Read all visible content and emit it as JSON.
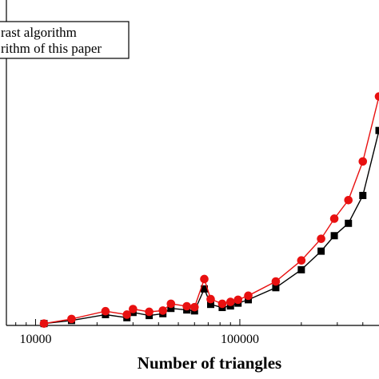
{
  "chart_data": {
    "type": "line",
    "xscale": "log",
    "xlabel": "Number of triangles",
    "ylabel": "",
    "title": "",
    "xlim": [
      7200,
      480000
    ],
    "ylim": [
      0,
      100
    ],
    "xticks": [
      10000,
      100000
    ],
    "xtick_labels": [
      "10000",
      "100000"
    ],
    "legend": {
      "position": "top-left",
      "entries": [
        "rast algorithm",
        "rithm of this paper"
      ]
    },
    "series": [
      {
        "name": "rast algorithm",
        "color": "#000000",
        "marker": "square",
        "x": [
          11000,
          15000,
          22000,
          28000,
          30000,
          36000,
          42000,
          46000,
          55000,
          60000,
          67000,
          72000,
          82000,
          90000,
          98000,
          110000,
          150000,
          200000,
          250000,
          290000,
          340000,
          400000,
          480000
        ],
        "y": [
          0.6,
          1.6,
          3.5,
          2.5,
          4.2,
          3.2,
          3.8,
          5.5,
          5.0,
          4.7,
          11.8,
          6.8,
          5.8,
          6.3,
          7.2,
          8.3,
          12.2,
          18.0,
          24.0,
          29.0,
          33.0,
          42.0,
          63.0
        ]
      },
      {
        "name": "rithm of this paper",
        "color": "#e81010",
        "marker": "circle",
        "x": [
          11000,
          15000,
          22000,
          28000,
          30000,
          36000,
          42000,
          46000,
          55000,
          60000,
          67000,
          72000,
          82000,
          90000,
          98000,
          110000,
          150000,
          200000,
          250000,
          290000,
          340000,
          400000,
          480000
        ],
        "y": [
          0.6,
          2.1,
          4.6,
          3.5,
          5.3,
          4.4,
          4.8,
          7.0,
          6.2,
          5.9,
          15.0,
          8.5,
          7.0,
          7.6,
          8.3,
          9.6,
          14.2,
          21.0,
          28.0,
          34.5,
          40.5,
          53.0,
          74.0
        ]
      }
    ]
  }
}
